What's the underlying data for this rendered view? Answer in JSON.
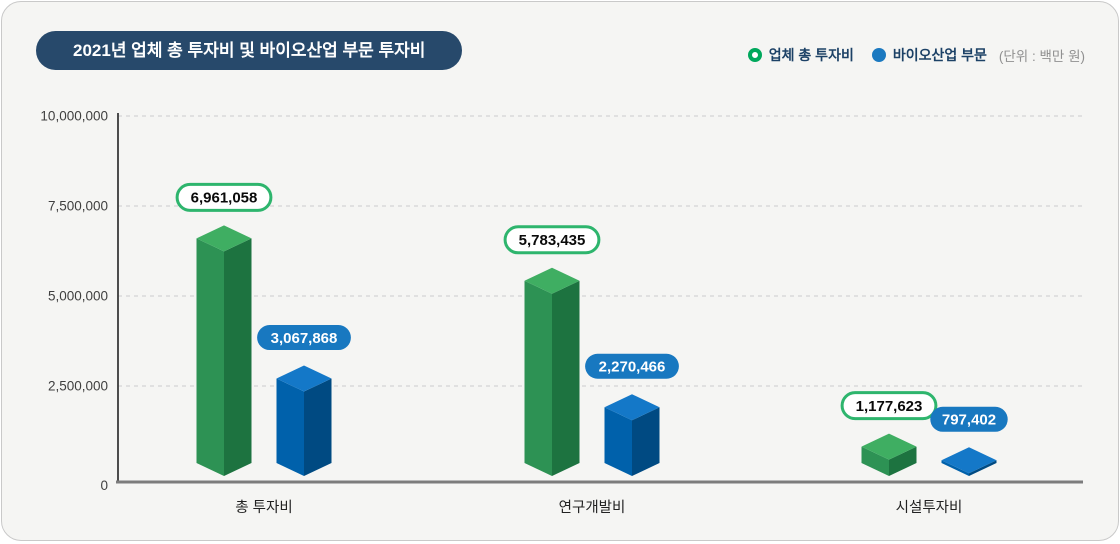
{
  "header": {
    "title": "2021년 업체 총 투자비 및 바이오산업 부문 투자비",
    "unit_label": "(단위 : 백만 원)"
  },
  "legend": [
    {
      "label": "업체 총 투자비",
      "marker": "green-ring",
      "color": "#00a85c"
    },
    {
      "label": "바이오산업 부문",
      "marker": "blue-dot",
      "color": "#1b79c0"
    }
  ],
  "chart_data": {
    "type": "bar",
    "style": "3d-column",
    "title": "2021년 업체 총 투자비 및 바이오산업 부문 투자비",
    "unit": "백만 원",
    "categories": [
      "총 투자비",
      "연구개발비",
      "시설투자비"
    ],
    "series": [
      {
        "name": "업체 총 투자비",
        "values": [
          6961058,
          5783435,
          1177623
        ],
        "value_labels": [
          "6,961,058",
          "5,783,435",
          "1,177,623"
        ],
        "face_colors": {
          "top": "#3fae62",
          "left": "#2d9254",
          "right": "#1d7340"
        },
        "badge": {
          "bg": "#ffffff",
          "border": "#2eb56d",
          "text": "#0a0a0a"
        }
      },
      {
        "name": "바이오산업 부문",
        "values": [
          3067868,
          2270466,
          797402
        ],
        "value_labels": [
          "3,067,868",
          "2,270,466",
          "797,402"
        ],
        "face_colors": {
          "top": "#1478c8",
          "left": "#0061ab",
          "right": "#004a82"
        },
        "badge": {
          "bg": "#1878c0",
          "border": "#1878c0",
          "text": "#ffffff"
        }
      }
    ],
    "ylim": [
      0,
      10000000
    ],
    "yticks": [
      0,
      2500000,
      5000000,
      7500000,
      10000000
    ],
    "ytick_labels": [
      "0",
      "2,500,000",
      "5,000,000",
      "7,500,000",
      "10,000,000"
    ],
    "grid": "dashed-horizontal",
    "legend_position": "top-right",
    "axis_colors": {
      "baseline": "#7c7c7c",
      "yaxis": "#3a3a3a",
      "grid": "#d9d9d9",
      "tick_text": "#3f3f3f",
      "category_text": "#222222"
    }
  }
}
